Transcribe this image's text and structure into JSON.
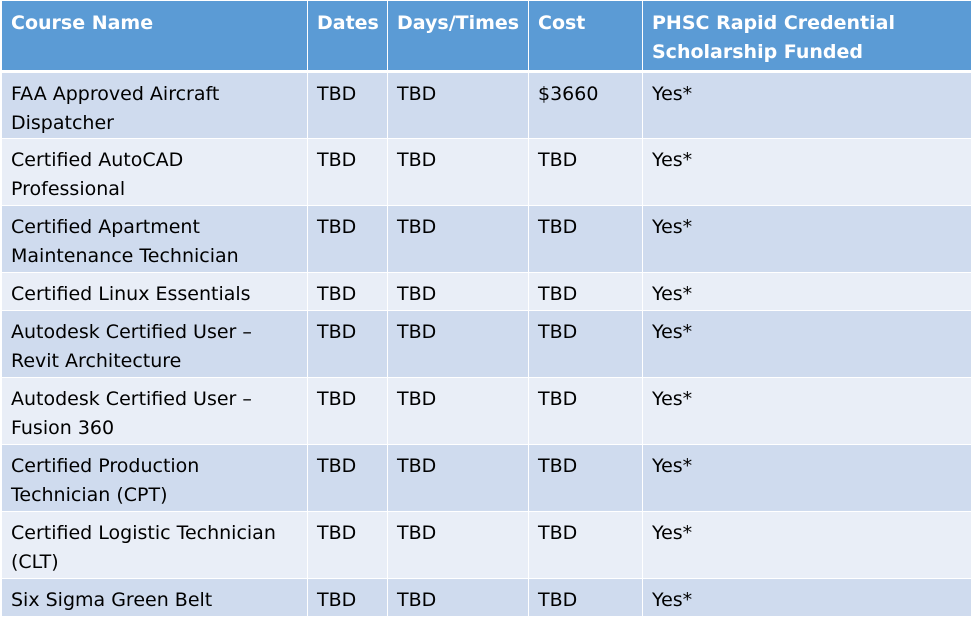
{
  "table": {
    "headers": [
      "Course Name",
      "Dates",
      "Days/Times",
      "Cost",
      "PHSC Rapid Credential Scholarship Funded"
    ],
    "rows": [
      {
        "course": "FAA Approved Aircraft Dispatcher",
        "dates": "TBD",
        "days_times": "TBD",
        "cost": "$3660",
        "funded": "Yes*"
      },
      {
        "course": "Certified AutoCAD Professional",
        "dates": "TBD",
        "days_times": "TBD",
        "cost": "TBD",
        "funded": "Yes*"
      },
      {
        "course": "Certified Apartment Maintenance Technician",
        "dates": "TBD",
        "days_times": "TBD",
        "cost": "TBD",
        "funded": "Yes*"
      },
      {
        "course": "Certified Linux Essentials",
        "dates": "TBD",
        "days_times": "TBD",
        "cost": "TBD",
        "funded": "Yes*"
      },
      {
        "course": "Autodesk Certified User – Revit Architecture",
        "dates": "TBD",
        "days_times": "TBD",
        "cost": "TBD",
        "funded": "Yes*"
      },
      {
        "course": "Autodesk Certified User – Fusion 360",
        "dates": "TBD",
        "days_times": "TBD",
        "cost": "TBD",
        "funded": "Yes*"
      },
      {
        "course": "Certified Production Technician (CPT)",
        "dates": "TBD",
        "days_times": "TBD",
        "cost": "TBD",
        "funded": "Yes*"
      },
      {
        "course": "Certified Logistic Technician (CLT)",
        "dates": "TBD",
        "days_times": "TBD",
        "cost": "TBD",
        "funded": "Yes*"
      },
      {
        "course": "Six Sigma Green Belt",
        "dates": "TBD",
        "days_times": "TBD",
        "cost": "TBD",
        "funded": "Yes*"
      }
    ]
  },
  "colors": {
    "header_bg": "#5b9bd5",
    "row_band_dark": "#cfdbee",
    "row_band_light": "#e9eef7",
    "header_text": "#ffffff"
  }
}
